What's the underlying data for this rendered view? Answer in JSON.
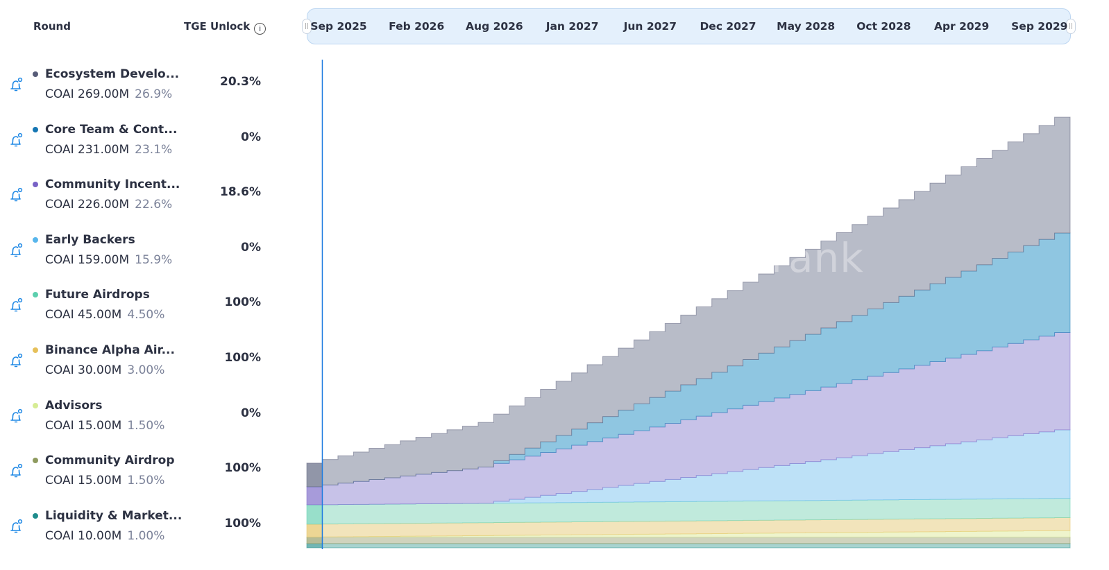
{
  "header": {
    "round": "Round",
    "tge_unlock": "TGE Unlock",
    "info_icon": "i"
  },
  "timeline": {
    "labels": [
      "Sep 2025",
      "Feb 2026",
      "Aug 2026",
      "Jan 2027",
      "Jun 2027",
      "Dec 2027",
      "May 2028",
      "Oct 2028",
      "Apr 2029",
      "Sep 2029"
    ]
  },
  "watermark": "cryptorank",
  "rounds": [
    {
      "name": "Ecosystem Develo...",
      "amount": "COAI 269.00M",
      "share": "26.9%",
      "tge": "20.3%",
      "color": "#575c78",
      "fill": "#b8bcc8"
    },
    {
      "name": "Core Team & Cont...",
      "amount": "COAI 231.00M",
      "share": "23.1%",
      "tge": "0%",
      "color": "#1576b3",
      "fill": "#8fc6e1"
    },
    {
      "name": "Community Incent...",
      "amount": "COAI 226.00M",
      "share": "22.6%",
      "tge": "18.6%",
      "color": "#7862c6",
      "fill": "#c7c2e8"
    },
    {
      "name": "Early Backers",
      "amount": "COAI 159.00M",
      "share": "15.9%",
      "tge": "0%",
      "color": "#58b6ec",
      "fill": "#bde1f7"
    },
    {
      "name": "Future Airdrops",
      "amount": "COAI 45.00M",
      "share": "4.50%",
      "tge": "100%",
      "color": "#5ccfae",
      "fill": "#c0eadc"
    },
    {
      "name": "Binance Alpha Air...",
      "amount": "COAI 30.00M",
      "share": "3.00%",
      "tge": "100%",
      "color": "#e6c05a",
      "fill": "#f2e4bb"
    },
    {
      "name": "Advisors",
      "amount": "COAI 15.00M",
      "share": "1.50%",
      "tge": "0%",
      "color": "#d6ec94",
      "fill": "#eef4cc"
    },
    {
      "name": "Community Airdrop",
      "amount": "COAI 15.00M",
      "share": "1.50%",
      "tge": "100%",
      "color": "#8e9a5e",
      "fill": "#d0d3bd"
    },
    {
      "name": "Liquidity & Market...",
      "amount": "COAI 10.00M",
      "share": "1.00%",
      "tge": "100%",
      "color": "#1f8c8c",
      "fill": "#a8d3cf"
    }
  ],
  "chart_data": {
    "type": "area",
    "stacked": true,
    "step": true,
    "unit": "COAI (M)",
    "x_range": [
      "Sep 2025",
      "Sep 2029"
    ],
    "interval": "monthly",
    "ylim": [
      0,
      1030
    ],
    "grid": false,
    "series": [
      {
        "name": "Liquidity & Market...",
        "values": [
          10,
          10,
          10,
          10,
          10,
          10,
          10,
          10,
          10,
          10,
          10,
          10,
          10,
          10,
          10,
          10,
          10,
          10,
          10,
          10,
          10,
          10,
          10,
          10,
          10,
          10,
          10,
          10,
          10,
          10,
          10,
          10,
          10,
          10,
          10,
          10,
          10,
          10,
          10,
          10,
          10,
          10,
          10,
          10,
          10,
          10,
          10,
          10,
          10
        ]
      },
      {
        "name": "Community Airdrop",
        "values": [
          15,
          15,
          15,
          15,
          15,
          15,
          15,
          15,
          15,
          15,
          15,
          15,
          15,
          15,
          15,
          15,
          15,
          15,
          15,
          15,
          15,
          15,
          15,
          15,
          15,
          15,
          15,
          15,
          15,
          15,
          15,
          15,
          15,
          15,
          15,
          15,
          15,
          15,
          15,
          15,
          15,
          15,
          15,
          15,
          15,
          15,
          15,
          15,
          15
        ]
      },
      {
        "name": "Advisors",
        "values": [
          0,
          0.3,
          0.6,
          0.9,
          1.3,
          1.6,
          1.9,
          2.2,
          2.5,
          2.8,
          3.1,
          3.4,
          3.8,
          4.1,
          4.4,
          4.7,
          5.0,
          5.3,
          5.6,
          5.9,
          6.3,
          6.6,
          6.9,
          7.2,
          7.5,
          7.8,
          8.1,
          8.4,
          8.8,
          9.1,
          9.4,
          9.7,
          10.0,
          10.3,
          10.6,
          10.9,
          11.3,
          11.6,
          11.9,
          12.2,
          12.5,
          12.8,
          13.1,
          13.4,
          13.8,
          14.1,
          14.4,
          14.7,
          15.0
        ]
      },
      {
        "name": "Binance Alpha Air...",
        "values": [
          30,
          30,
          30,
          30,
          30,
          30,
          30,
          30,
          30,
          30,
          30,
          30,
          30,
          30,
          30,
          30,
          30,
          30,
          30,
          30,
          30,
          30,
          30,
          30,
          30,
          30,
          30,
          30,
          30,
          30,
          30,
          30,
          30,
          30,
          30,
          30,
          30,
          30,
          30,
          30,
          30,
          30,
          30,
          30,
          30,
          30,
          30,
          30,
          30
        ]
      },
      {
        "name": "Future Airdrops",
        "values": [
          45,
          45,
          45,
          45,
          45,
          45,
          45,
          45,
          45,
          45,
          45,
          45,
          45,
          45,
          45,
          45,
          45,
          45,
          45,
          45,
          45,
          45,
          45,
          45,
          45,
          45,
          45,
          45,
          45,
          45,
          45,
          45,
          45,
          45,
          45,
          45,
          45,
          45,
          45,
          45,
          45,
          45,
          45,
          45,
          45,
          45,
          45,
          45,
          45
        ]
      },
      {
        "name": "Early Backers",
        "values": [
          0,
          0,
          0,
          0,
          0,
          0,
          0,
          0,
          0,
          0,
          0,
          0,
          4.3,
          8.6,
          12.9,
          17.2,
          21.5,
          25.8,
          30.1,
          34.4,
          38.7,
          43.0,
          47.3,
          51.6,
          55.9,
          60.2,
          64.5,
          68.8,
          73.0,
          77.3,
          81.6,
          85.9,
          90.2,
          94.5,
          98.8,
          103.1,
          107.4,
          111.7,
          116.0,
          120.3,
          124.6,
          128.9,
          133.2,
          137.5,
          141.8,
          146.1,
          150.4,
          154.7,
          159.0
        ]
      },
      {
        "name": "Community Incent...",
        "values": [
          42.0,
          45.8,
          49.7,
          53.5,
          57.3,
          61.2,
          65.0,
          68.8,
          72.7,
          76.5,
          80.3,
          84.2,
          88.0,
          91.8,
          95.7,
          99.5,
          103.3,
          107.2,
          111.0,
          114.8,
          118.7,
          122.5,
          126.3,
          130.2,
          134.0,
          137.8,
          141.7,
          145.5,
          149.3,
          153.2,
          157.0,
          160.8,
          164.7,
          168.5,
          172.3,
          176.2,
          180.0,
          183.8,
          187.7,
          191.5,
          195.3,
          199.2,
          203.0,
          206.8,
          210.7,
          214.5,
          218.3,
          222.2,
          226.0
        ]
      },
      {
        "name": "Core Team & Cont...",
        "values": [
          0,
          0,
          0,
          0,
          0,
          0,
          0,
          0,
          0,
          0,
          0,
          0,
          6.2,
          12.5,
          18.7,
          25.0,
          31.2,
          37.5,
          43.7,
          49.9,
          56.2,
          62.4,
          68.7,
          74.9,
          81.2,
          87.4,
          93.6,
          99.9,
          106.1,
          112.4,
          118.6,
          124.9,
          131.1,
          137.3,
          143.6,
          149.8,
          156.1,
          162.3,
          168.6,
          174.8,
          181.1,
          187.3,
          193.5,
          199.8,
          206.0,
          212.3,
          218.5,
          224.8,
          231.0
        ]
      },
      {
        "name": "Ecosystem Develo...",
        "values": [
          54.6,
          59.1,
          63.5,
          68.0,
          72.5,
          76.9,
          81.4,
          85.9,
          90.3,
          94.8,
          99.3,
          103.7,
          108.2,
          112.7,
          117.1,
          121.6,
          126.1,
          130.5,
          135.0,
          139.5,
          143.9,
          148.4,
          152.9,
          157.3,
          161.8,
          166.3,
          170.7,
          175.2,
          179.7,
          184.1,
          188.6,
          193.1,
          197.5,
          202.0,
          206.5,
          210.9,
          215.4,
          219.9,
          224.3,
          228.8,
          233.3,
          237.7,
          242.2,
          246.7,
          251.1,
          255.6,
          260.1,
          264.5,
          269.0
        ]
      }
    ]
  }
}
